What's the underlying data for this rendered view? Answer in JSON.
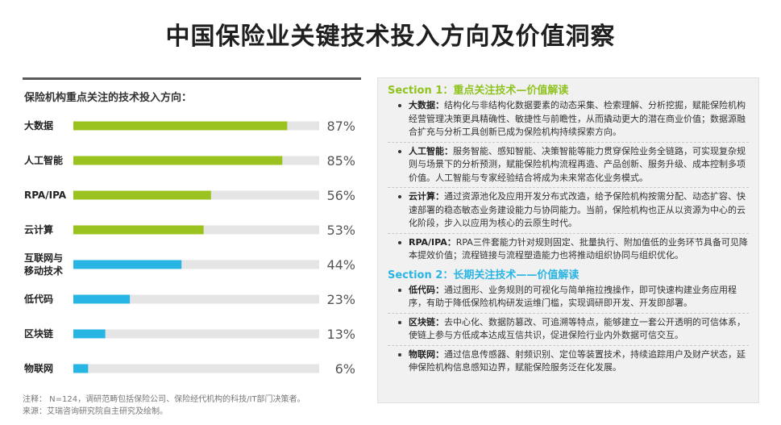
{
  "title": "中国保险业关键技术投入方向及价值洞察",
  "chart_data": {
    "type": "bar",
    "orientation": "horizontal",
    "title": "保险机构重点关注的技术投入方向：",
    "categories": [
      "大数据",
      "人工智能",
      "RPA/IPA",
      "云计算",
      "互联网与移动技术",
      "低代码",
      "区块链",
      "物联网"
    ],
    "category_lines": [
      [
        "大数据"
      ],
      [
        "人工智能"
      ],
      [
        "RPA/IPA"
      ],
      [
        "云计算"
      ],
      [
        "互联网与",
        "移动技术"
      ],
      [
        "低代码"
      ],
      [
        "区块链"
      ],
      [
        "物联网"
      ]
    ],
    "values": [
      87,
      85,
      56,
      53,
      44,
      23,
      13,
      6
    ],
    "value_labels": [
      "87%",
      "85%",
      "56%",
      "53%",
      "44%",
      "23%",
      "13%",
      "6%"
    ],
    "xlim": [
      0,
      100
    ],
    "colors": [
      "#9bc31f",
      "#9bc31f",
      "#9bc31f",
      "#9bc31f",
      "#27b5e4",
      "#27b5e4",
      "#27b5e4",
      "#27b5e4"
    ],
    "track_color": "#e5e5e5"
  },
  "notes": {
    "note": "注释： N=124，调研范畴包括保险公司、保险经代机构的科技/IT部门决策者。",
    "source": "来源：艾瑞咨询研究院自主研究及绘制。"
  },
  "sections": [
    {
      "title": "Section 1：重点关注技术—价值解读",
      "color": "#8fc31f",
      "items": [
        {
          "name": "大数据：",
          "text": "结构化与非结构化数据要素的动态采集、检索理解、分析挖掘，赋能保险机构经营管理决策更具精确性、敏捷性与前瞻性，从而撬动更大的潜在商业价值；数据源融合扩充与分析工具创新已成为保险机构持续探索方向。"
        },
        {
          "name": "人工智能：",
          "text": "服务智能、感知智能、决策智能等能力贯穿保险业务全链路，可实现复杂规则与场景下的分析预测，赋能保险机构流程再造、产品创新、服务升级、成本控制多项价值。人工智能与专家经验结合将成为未来常态化业务模式。"
        },
        {
          "name": "云计算：",
          "text": "通过资源池化及应用开发分布式改造，给予保险机构按需分配、动态扩容、快速部署的稳态敏态业务建设能力与协同能力。当前，保险机构也正从以资源为中心的云化阶段，步入以应用为核心的云原生时代。"
        },
        {
          "name": "RPA/IPA：",
          "text": "RPA三件套能力针对规则固定、批量执行、附加值低的业务环节具备可见降本提效价值；流程链接与流程塑造能力也将推动组织协同与组织优化。"
        }
      ]
    },
    {
      "title": "Section 2：长期关注技术——价值解读",
      "color": "#2ab5e4",
      "items": [
        {
          "name": "低代码：",
          "text": "通过图形、业务规则的可视化与简单拖拉拽操作，即可快速构建业务应用程序，有助于降低保险机构研发运维门槛，实现调研即开发、开发即部署。"
        },
        {
          "name": "区块链：",
          "text": "去中心化、数据防篡改、可追溯等特点，能够建立一套公开透明的可信体系，使链上参与方低成本达成互信共识，促进保险行业内外数据可信交互。"
        },
        {
          "name": "物联网：",
          "text": "通过信息传感器、射频识别、定位等装置技术，持续追踪用户及财产状态，延伸保险机构信息感知边界，赋能保险服务泛在化发展。"
        }
      ]
    }
  ]
}
